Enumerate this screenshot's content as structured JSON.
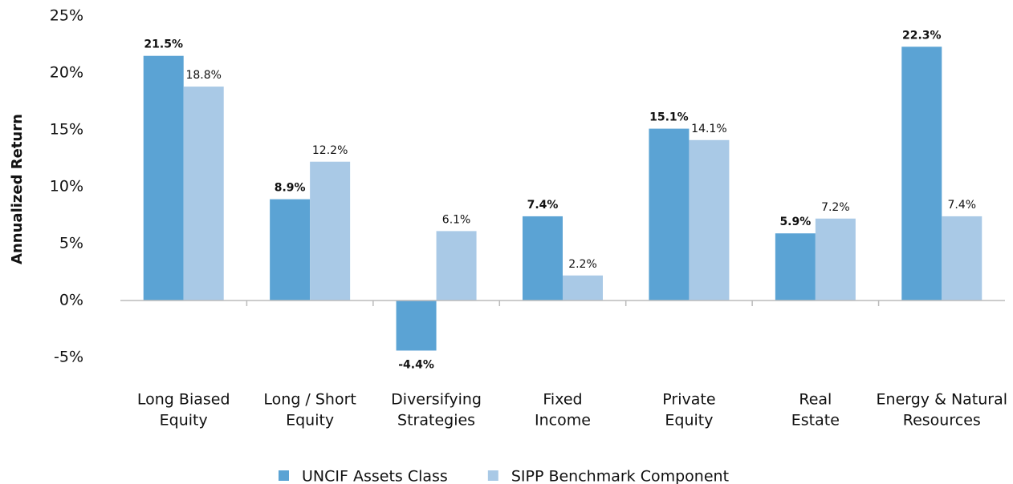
{
  "chart_data": {
    "type": "bar",
    "y_axis_label": "Annualized Return",
    "categories": [
      [
        "Long Biased",
        "Equity"
      ],
      [
        "Long / Short",
        "Equity"
      ],
      [
        "Diversifying",
        "Strategies"
      ],
      [
        "Fixed",
        "Income"
      ],
      [
        "Private",
        "Equity"
      ],
      [
        "Real",
        "Estate"
      ],
      [
        "Energy & Natural",
        "Resources"
      ]
    ],
    "series": [
      {
        "name": "UNCIF Assets Class",
        "color": "#5ba3d4",
        "values": [
          21.5,
          8.9,
          -4.4,
          7.4,
          15.1,
          5.9,
          22.3
        ],
        "value_labels": [
          "21.5%",
          "8.9%",
          "-4.4%",
          "7.4%",
          "15.1%",
          "5.9%",
          "22.3%"
        ]
      },
      {
        "name": "SIPP Benchmark Component",
        "color": "#a9c9e6",
        "values": [
          18.8,
          12.2,
          6.1,
          2.2,
          14.1,
          7.2,
          7.4
        ],
        "value_labels": [
          "18.8%",
          "12.2%",
          "6.1%",
          "2.2%",
          "14.1%",
          "7.2%",
          "7.4%"
        ]
      }
    ],
    "ylim": [
      -5,
      25
    ],
    "yticks": [
      {
        "value": -5,
        "label": "-5%"
      },
      {
        "value": 0,
        "label": "0%"
      },
      {
        "value": 5,
        "label": "5%"
      },
      {
        "value": 10,
        "label": "10%"
      },
      {
        "value": 15,
        "label": "15%"
      },
      {
        "value": 20,
        "label": "20%"
      },
      {
        "value": 25,
        "label": "25%"
      }
    ],
    "legend": "bottom"
  }
}
